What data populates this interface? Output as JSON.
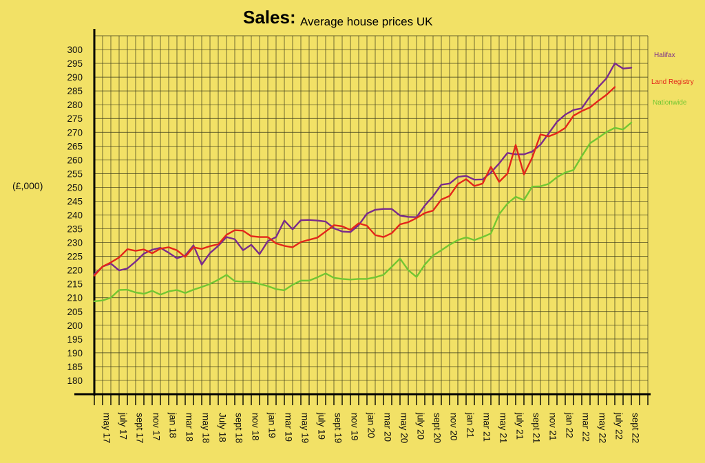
{
  "chart_data": {
    "type": "line",
    "title": "Sales:",
    "subtitle": "Average house prices UK",
    "ylabel": "(£,000)",
    "xlabel": "",
    "ylim": [
      175,
      305
    ],
    "yticks": [
      180,
      185,
      190,
      195,
      200,
      205,
      210,
      215,
      220,
      225,
      230,
      235,
      240,
      245,
      250,
      255,
      260,
      265,
      270,
      275,
      280,
      285,
      290,
      295,
      300
    ],
    "grid": true,
    "legend": "right",
    "x_tick_labels": [
      "may 17",
      "july 17",
      "sept 17",
      "nov 17",
      "jan 18",
      "mar 18",
      "may 18",
      "July 18",
      "sept 18",
      "nov 18",
      "jan 19",
      "mar 19",
      "may 19",
      "july 19",
      "sept 19",
      "nov 19",
      "jan 20",
      "mar 20",
      "may 20",
      "july 20",
      "sept 20",
      "nov 20",
      "jan 21",
      "mar 21",
      "may 21",
      "july 21",
      "sept 21",
      "nov 21",
      "jan 22",
      "mar 22",
      "may 22",
      "july 22",
      "sept 22"
    ],
    "x_start": "apr 17",
    "series": [
      {
        "name": "Halifax",
        "color": "#7a2b8c",
        "values": [
          218.5,
          221.3,
          222.4,
          219.9,
          220.6,
          223.1,
          226.0,
          227.4,
          228.1,
          226.3,
          224.3,
          225.3,
          229.0,
          222.0,
          226.2,
          228.8,
          232.0,
          231.2,
          227.2,
          229.2,
          225.8,
          230.5,
          232.0,
          238.0,
          234.8,
          238.1,
          238.2,
          238.0,
          237.6,
          235.2,
          234.0,
          233.8,
          236.3,
          240.5,
          241.9,
          242.2,
          242.2,
          239.8,
          239.3,
          239.2,
          243.4,
          246.8,
          251.0,
          251.4,
          253.8,
          254.2,
          252.8,
          252.9,
          255.4,
          258.7,
          262.5,
          262.0,
          262.0,
          263.0,
          265.5,
          269.6,
          273.8,
          276.4,
          278.1,
          278.7,
          283.0,
          286.4,
          289.6,
          295.0,
          293.1,
          293.4
        ]
      },
      {
        "name": "Land Registry",
        "color": "#e3261a",
        "values": [
          218.0,
          221.3,
          222.8,
          224.6,
          227.6,
          227.0,
          227.5,
          226.1,
          227.8,
          228.3,
          227.2,
          224.8,
          228.3,
          227.7,
          228.7,
          229.4,
          232.8,
          234.5,
          234.3,
          232.3,
          232.0,
          232.0,
          229.7,
          228.8,
          228.3,
          230.2,
          231.0,
          231.8,
          234.0,
          236.3,
          235.9,
          234.6,
          237.0,
          236.1,
          232.7,
          232.0,
          233.4,
          236.6,
          237.4,
          238.9,
          240.7,
          241.6,
          245.6,
          246.9,
          251.2,
          253.0,
          250.5,
          251.4,
          257.5,
          252.0,
          255.0,
          265.4,
          254.7,
          260.8,
          269.2,
          268.5,
          269.7,
          271.6,
          276.0,
          277.7,
          279.0,
          281.4,
          283.6,
          286.4
        ]
      },
      {
        "name": "Nationwide",
        "color": "#72c632",
        "values": [
          208.7,
          209.0,
          210.0,
          212.8,
          212.9,
          211.9,
          211.4,
          212.5,
          211.1,
          212.3,
          212.8,
          211.7,
          212.9,
          213.9,
          215.0,
          216.5,
          218.3,
          216.0,
          215.8,
          215.8,
          215.0,
          214.2,
          213.1,
          212.7,
          214.7,
          216.2,
          216.2,
          217.4,
          218.8,
          217.2,
          216.8,
          216.6,
          216.8,
          216.8,
          217.4,
          218.3,
          221.2,
          224.2,
          220.0,
          217.5,
          222.0,
          225.3,
          227.2,
          229.2,
          230.9,
          231.9,
          230.9,
          232.0,
          233.3,
          240.3,
          244.1,
          246.6,
          245.4,
          250.3,
          250.4,
          251.3,
          253.7,
          255.4,
          256.3,
          261.3,
          266.0,
          268.0,
          270.1,
          271.6,
          271.0,
          273.5
        ]
      }
    ]
  }
}
